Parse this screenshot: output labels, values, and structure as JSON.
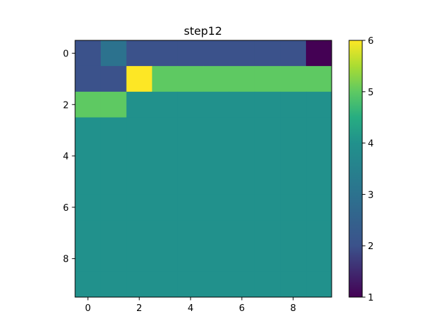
{
  "chart_data": {
    "type": "heatmap",
    "title": "step12",
    "xlabel": "",
    "ylabel": "",
    "x_ticks": [
      0,
      2,
      4,
      6,
      8
    ],
    "y_ticks": [
      0,
      2,
      4,
      6,
      8
    ],
    "xlim": [
      -0.5,
      9.5
    ],
    "ylim": [
      9.5,
      -0.5
    ],
    "colormap": "viridis",
    "colorbar": {
      "range": [
        1,
        6
      ],
      "ticks": [
        1,
        2,
        3,
        4,
        5,
        6
      ]
    },
    "grid": false,
    "values": [
      [
        2,
        3,
        2,
        2,
        2,
        2,
        2,
        2,
        2,
        1
      ],
      [
        2,
        2,
        6,
        5,
        5,
        5,
        5,
        5,
        5,
        5
      ],
      [
        5,
        5,
        4,
        4,
        4,
        4,
        4,
        4,
        4,
        4
      ],
      [
        4,
        4,
        4,
        4,
        4,
        4,
        4,
        4,
        4,
        4
      ],
      [
        4,
        4,
        4,
        4,
        4,
        4,
        4,
        4,
        4,
        4
      ],
      [
        4,
        4,
        4,
        4,
        4,
        4,
        4,
        4,
        4,
        4
      ],
      [
        4,
        4,
        4,
        4,
        4,
        4,
        4,
        4,
        4,
        4
      ],
      [
        4,
        4,
        4,
        4,
        4,
        4,
        4,
        4,
        4,
        4
      ],
      [
        4,
        4,
        4,
        4,
        4,
        4,
        4,
        4,
        4,
        4
      ],
      [
        4,
        4,
        4,
        4,
        4,
        4,
        4,
        4,
        4,
        4
      ]
    ]
  }
}
